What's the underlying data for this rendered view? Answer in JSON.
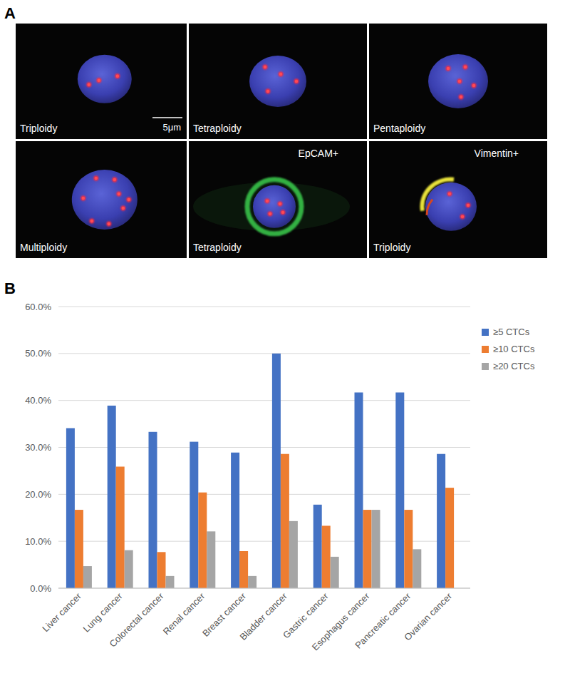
{
  "panel_a": {
    "label": "A",
    "scale_bar": "5μm",
    "images": [
      {
        "label": "Triploidy"
      },
      {
        "label": "Tetraploidy"
      },
      {
        "label": "Pentaploidy"
      },
      {
        "label": "Multiploidy"
      },
      {
        "label": "Tetraploidy",
        "stain": "EpCAM+"
      },
      {
        "label": "Triploidy",
        "stain": "Vimentin+"
      }
    ]
  },
  "panel_b_label": "B",
  "chart_data": {
    "type": "bar",
    "categories": [
      "Liver cancer",
      "Lung cancer",
      "Colorectal cancer",
      "Renal cancer",
      "Breast cancer",
      "Bladder cancer",
      "Gastric cancer",
      "Esophagus cancer",
      "Pancreatic cancer",
      "Ovarian cancer"
    ],
    "series": [
      {
        "name": "≥5 CTCs",
        "color": "#4472c4",
        "values": [
          34.1,
          38.9,
          33.3,
          31.2,
          28.9,
          50.0,
          17.8,
          41.7,
          41.7,
          28.6
        ]
      },
      {
        "name": "≥10 CTCs",
        "color": "#ed7d31",
        "values": [
          16.7,
          25.9,
          7.7,
          20.4,
          7.9,
          28.6,
          13.3,
          16.7,
          16.7,
          21.4
        ]
      },
      {
        "name": "≥20 CTCs",
        "color": "#a5a5a5",
        "values": [
          4.7,
          8.1,
          2.6,
          12.1,
          2.6,
          14.3,
          6.7,
          16.7,
          8.3,
          0
        ]
      }
    ],
    "ylim": [
      0,
      60
    ],
    "yticks": [
      {
        "value": 0,
        "label": "0.0%"
      },
      {
        "value": 10,
        "label": "10.0%"
      },
      {
        "value": 20,
        "label": "20.0%"
      },
      {
        "value": 30,
        "label": "30.0%"
      },
      {
        "value": 40,
        "label": "40.0%"
      },
      {
        "value": 50,
        "label": "50.0%"
      },
      {
        "value": 60,
        "label": "60.0%"
      }
    ],
    "grid": true,
    "legend": "right"
  }
}
